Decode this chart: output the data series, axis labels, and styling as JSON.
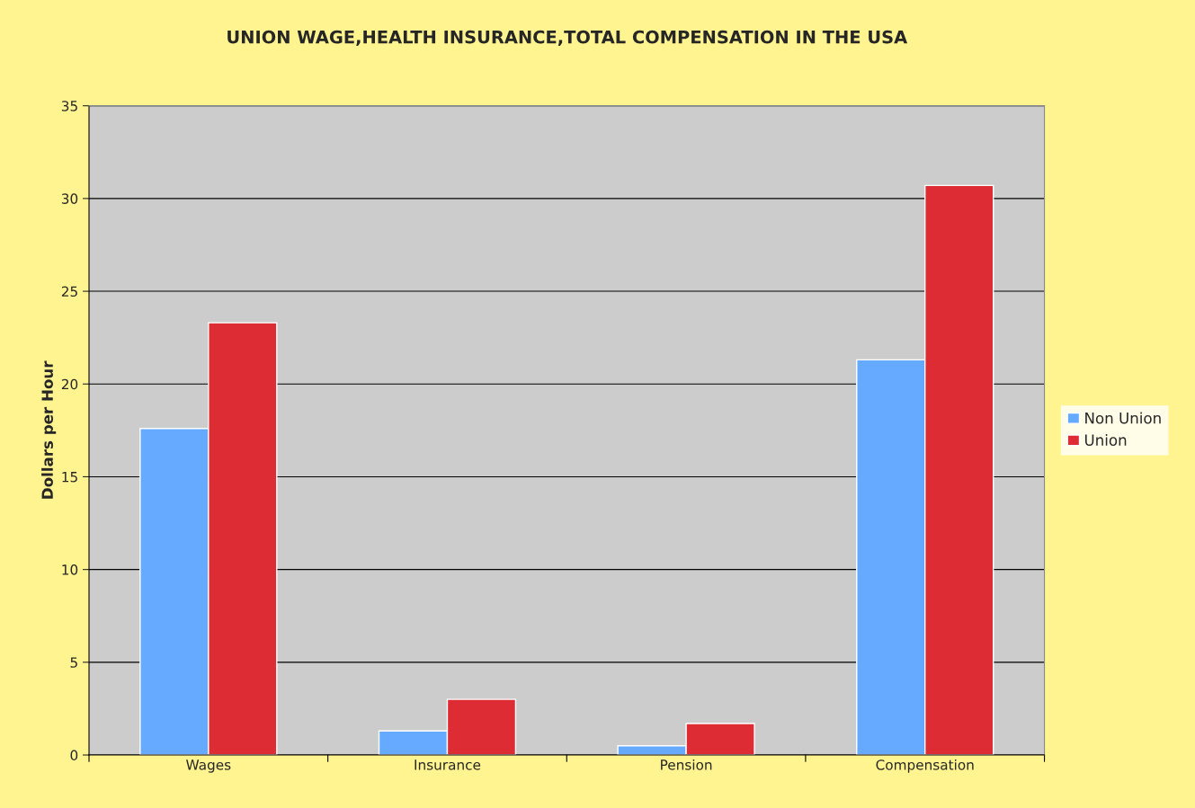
{
  "chart_data": {
    "type": "bar",
    "title": "UNION WAGE,HEALTH INSURANCE,TOTAL COMPENSATION IN THE USA",
    "ylabel": "Dollars per Hour",
    "categories": [
      "Wages",
      "Insurance",
      "Pension",
      "Compensation"
    ],
    "series": [
      {
        "name": "Non Union",
        "color": "#66aaff",
        "values": [
          17.6,
          1.3,
          0.5,
          21.3
        ]
      },
      {
        "name": "Union",
        "color": "#dd2c33",
        "values": [
          23.3,
          3.0,
          1.7,
          30.7
        ]
      }
    ],
    "ylim": [
      0,
      35
    ],
    "yticks": [
      0,
      5,
      10,
      15,
      20,
      25,
      30,
      35
    ],
    "grid": "y",
    "legend": "right"
  }
}
